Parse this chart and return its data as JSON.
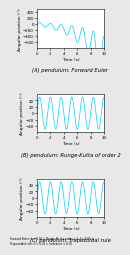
{
  "title_a": "(A) pendulum: Forward Euler",
  "title_b": "(B) pendulum: Runge-Kutta of order 2",
  "title_c": "(C) pendulum: trapezoidal rule",
  "caption": "Forward Euler: h = 0.01 s; Runge-Ku (to order = 2, h =0.01 s;\nTrapezoidal rule: h = 0.01 s, tolerance = 0.01",
  "xlabel": "Time (s)",
  "ylabel": "Angular position (°)",
  "t_end": 10,
  "amplitude_b": 50,
  "amplitude_c": 50,
  "ylim_a": [
    -800,
    500
  ],
  "ylim_b": [
    -60,
    60
  ],
  "ylim_c": [
    -60,
    60
  ],
  "yticks_a": [
    -600,
    -400,
    -200,
    0,
    200,
    400
  ],
  "yticks_b": [
    -40,
    -20,
    0,
    20,
    40
  ],
  "yticks_c": [
    -40,
    -20,
    0,
    20,
    40
  ],
  "xticks": [
    0,
    2,
    4,
    6,
    8,
    10
  ],
  "line_color": "#00cfff",
  "bg_color": "#ffffff",
  "fig_bg": "#e8e8e8",
  "period": 1.6,
  "title_fontsize": 3.8,
  "label_fontsize": 3.2,
  "tick_fontsize": 2.8,
  "caption_fontsize": 2.0
}
